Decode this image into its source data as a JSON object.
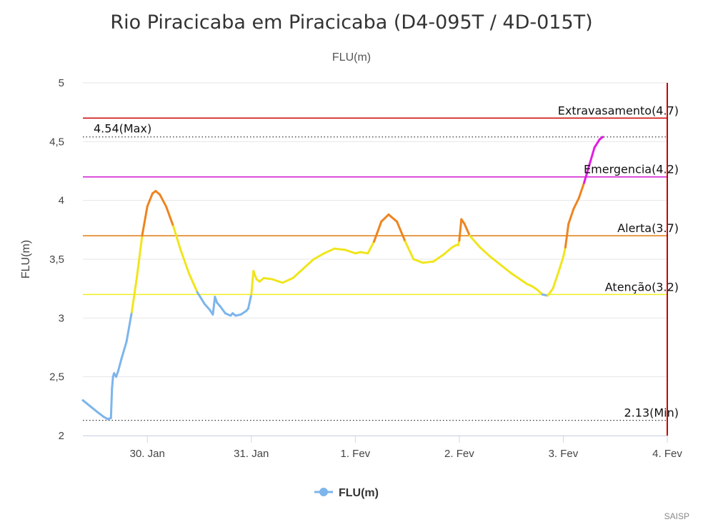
{
  "chart_data": {
    "type": "line",
    "title": "Rio Piracicaba em Piracicaba (D4-095T / 4D-015T)",
    "subtitle": "FLU(m)",
    "ylabel": "FLU(m)",
    "xlabel": "",
    "ylim": [
      2,
      5
    ],
    "yticks": [
      {
        "value": 2,
        "label": "2"
      },
      {
        "value": 2.5,
        "label": "2,5"
      },
      {
        "value": 3,
        "label": "3"
      },
      {
        "value": 3.5,
        "label": "3,5"
      },
      {
        "value": 4,
        "label": "4"
      },
      {
        "value": 4.5,
        "label": "4,5"
      },
      {
        "value": 5,
        "label": "5"
      }
    ],
    "xticks": [
      {
        "day": 30,
        "label": "30. Jan"
      },
      {
        "day": 31,
        "label": "31. Jan"
      },
      {
        "day": 32,
        "label": "1. Fev"
      },
      {
        "day": 33,
        "label": "2. Fev"
      },
      {
        "day": 34,
        "label": "3. Fev"
      },
      {
        "day": 35,
        "label": "4. Fev"
      }
    ],
    "xlim": [
      29.38,
      35
    ],
    "now_line_day": 35,
    "grid": true,
    "legend": "bottom-center",
    "series": [
      {
        "name": "FLU(m)",
        "color": "#7cb5ec",
        "x": [
          29.38,
          29.45,
          29.52,
          29.58,
          29.62,
          29.65,
          29.66,
          29.67,
          29.68,
          29.7,
          29.72,
          29.75,
          29.8,
          29.85,
          29.9,
          29.95,
          30.0,
          30.05,
          30.08,
          30.12,
          30.18,
          30.25,
          30.32,
          30.4,
          30.48,
          30.55,
          30.6,
          30.63,
          30.65,
          30.67,
          30.7,
          30.75,
          30.8,
          30.82,
          30.85,
          30.9,
          30.95,
          30.97,
          31.0,
          31.02,
          31.05,
          31.08,
          31.12,
          31.2,
          31.3,
          31.4,
          31.5,
          31.6,
          31.7,
          31.8,
          31.9,
          32.0,
          32.05,
          32.12,
          32.18,
          32.25,
          32.32,
          32.4,
          32.48,
          32.56,
          32.65,
          32.75,
          32.85,
          32.93,
          32.97,
          32.99,
          33.0,
          33.02,
          33.05,
          33.1,
          33.2,
          33.3,
          33.4,
          33.5,
          33.6,
          33.65,
          33.7,
          33.75,
          33.8,
          33.85,
          33.9,
          33.95,
          34.0,
          34.02,
          34.05,
          34.1,
          34.15,
          34.2,
          34.25,
          34.3,
          34.35,
          34.38
        ],
        "values": [
          2.3,
          2.25,
          2.2,
          2.16,
          2.14,
          2.15,
          2.4,
          2.5,
          2.53,
          2.5,
          2.55,
          2.65,
          2.8,
          3.05,
          3.35,
          3.7,
          3.95,
          4.06,
          4.08,
          4.05,
          3.95,
          3.78,
          3.58,
          3.38,
          3.22,
          3.12,
          3.07,
          3.03,
          3.18,
          3.13,
          3.1,
          3.04,
          3.02,
          3.04,
          3.02,
          3.03,
          3.06,
          3.08,
          3.2,
          3.4,
          3.33,
          3.31,
          3.34,
          3.33,
          3.3,
          3.34,
          3.42,
          3.5,
          3.55,
          3.59,
          3.58,
          3.55,
          3.56,
          3.55,
          3.65,
          3.82,
          3.88,
          3.82,
          3.65,
          3.5,
          3.47,
          3.48,
          3.54,
          3.6,
          3.62,
          3.62,
          3.66,
          3.84,
          3.8,
          3.7,
          3.6,
          3.52,
          3.45,
          3.38,
          3.32,
          3.29,
          3.27,
          3.24,
          3.2,
          3.19,
          3.25,
          3.38,
          3.52,
          3.6,
          3.8,
          3.93,
          4.02,
          4.15,
          4.3,
          4.45,
          4.52,
          4.54
        ]
      }
    ],
    "reference_lines": [
      {
        "name": "Extravasamento",
        "label": "Extravasamento(4.7)",
        "value": 4.7,
        "color": "#cc0000",
        "style": "solid"
      },
      {
        "name": "Emergencia",
        "label": "Emergencia(4.2)",
        "value": 4.2,
        "color": "#d11ad1",
        "style": "solid"
      },
      {
        "name": "Alerta",
        "label": "Alerta(3.7)",
        "value": 3.7,
        "color": "#e07a0c",
        "style": "solid"
      },
      {
        "name": "Atenção",
        "label": "Atenção(3.2)",
        "value": 3.2,
        "color": "#eeee22",
        "style": "solid"
      },
      {
        "name": "Max",
        "label": "4.54(Max)",
        "value": 4.54,
        "color": "#333333",
        "style": "dotted"
      },
      {
        "name": "Min",
        "label": "2.13(Min)",
        "value": 2.13,
        "color": "#333333",
        "style": "dotted"
      }
    ],
    "level_colors": {
      "below_atencao": "#7cb5ec",
      "atencao": "#f0e51c",
      "alerta": "#ee8420",
      "emergencia": "#e21de2"
    },
    "now_line_color": "#cc0000",
    "legend_marker_color": "#7cb5ec",
    "credit": "SAISP"
  }
}
